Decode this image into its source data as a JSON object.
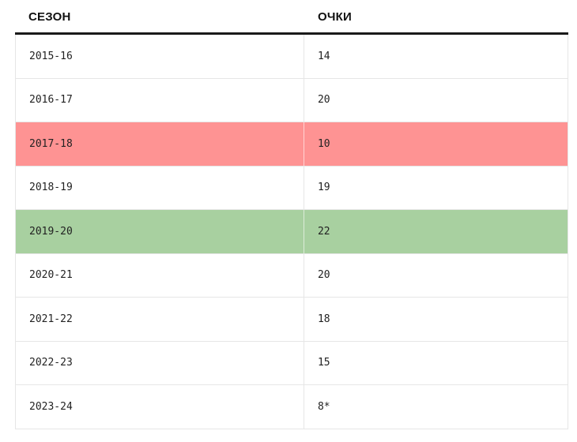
{
  "table": {
    "headers": {
      "season": "СЕЗОН",
      "points": "ОЧКИ"
    },
    "rows": [
      {
        "season": "2015-16",
        "points": "14",
        "highlight": "none"
      },
      {
        "season": "2016-17",
        "points": "20",
        "highlight": "none"
      },
      {
        "season": "2017-18",
        "points": "10",
        "highlight": "red"
      },
      {
        "season": "2018-19",
        "points": "19",
        "highlight": "none"
      },
      {
        "season": "2019-20",
        "points": "22",
        "highlight": "green"
      },
      {
        "season": "2020-21",
        "points": "20",
        "highlight": "none"
      },
      {
        "season": "2021-22",
        "points": "18",
        "highlight": "none"
      },
      {
        "season": "2022-23",
        "points": "15",
        "highlight": "none"
      },
      {
        "season": "2023-24",
        "points": "8*",
        "highlight": "none"
      }
    ]
  },
  "colors": {
    "header_rule": "#1a1a1a",
    "row_border": "#e6e6e6",
    "highlight_red": "#fe9393",
    "highlight_green": "#a8d0a0"
  }
}
